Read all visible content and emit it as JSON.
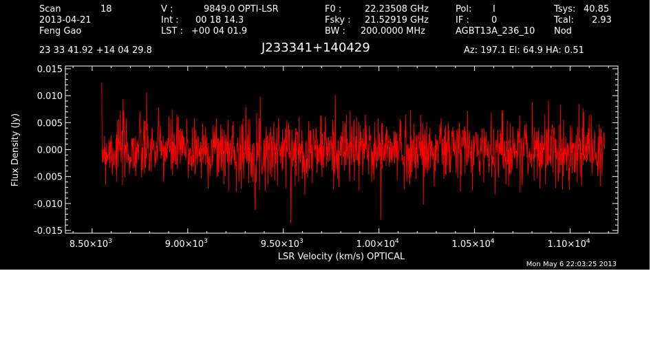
{
  "header": {
    "scan_label": "Scan",
    "scan_value": "18",
    "date": "2013-04-21",
    "observer": "Feng Gao",
    "v_label": "V   :",
    "v_value": "9849.0 OPTI-LSR",
    "int_label": "Int  :",
    "int_value": "00 18 14.3",
    "lst_label": "LST :",
    "lst_value": "+00 04 01.9",
    "f0_label": "F0   :",
    "f0_value": "22.23508 GHz",
    "fsky_label": "Fsky :",
    "fsky_value": "21.52919 GHz",
    "bw_label": "BW   :",
    "bw_value": "200.0000 MHz",
    "pol_label": "Pol:",
    "pol_value": "I",
    "if_label": "IF :",
    "if_value": "0",
    "project": "AGBT13A_236_10",
    "tsys_label": "Tsys:",
    "tsys_value": "40.85",
    "tcal_label": "Tcal:",
    "tcal_value": "2.93",
    "mode": "Nod",
    "coords": "23 33 41.92  +14 04 29.8",
    "source": "J233341+140429",
    "az_el_ha": "Az: 197.1  El:  64.9  HA:  0.51",
    "timestamp": "Mon May  6 22:03:25 2013"
  },
  "chart_data": {
    "type": "line",
    "xlabel": "LSR Velocity (km/s) OPTICAL",
    "ylabel": "Flux Density (Jy)",
    "xlim": [
      8360,
      11250
    ],
    "ylim": [
      -0.0155,
      0.0155
    ],
    "x_ticks": [
      {
        "value": 8500,
        "mant": "8.50",
        "exp": "3"
      },
      {
        "value": 9000,
        "mant": "9.00",
        "exp": "3"
      },
      {
        "value": 9500,
        "mant": "9.50",
        "exp": "3"
      },
      {
        "value": 10000,
        "mant": "1.00",
        "exp": "4"
      },
      {
        "value": 10500,
        "mant": "1.05",
        "exp": "4"
      },
      {
        "value": 11000,
        "mant": "1.10",
        "exp": "4"
      }
    ],
    "y_ticks": [
      {
        "value": 0.015,
        "label": "0.015"
      },
      {
        "value": 0.01,
        "label": "0.010"
      },
      {
        "value": 0.005,
        "label": "0.005"
      },
      {
        "value": 0.0,
        "label": "0.000"
      },
      {
        "value": -0.005,
        "label": "-0.005"
      },
      {
        "value": -0.01,
        "label": "-0.010"
      },
      {
        "value": -0.015,
        "label": "-0.015"
      }
    ],
    "series": [
      {
        "color": "#ff0000",
        "x_start": 8550,
        "x_end": 11180,
        "n_points": 1400,
        "noise_rms": 0.0032,
        "noise_seed": 7
      }
    ],
    "grid": false,
    "legend": "none"
  },
  "colors": {
    "background": "#000000",
    "foreground": "#ffffff",
    "trace": "#ff0000"
  }
}
